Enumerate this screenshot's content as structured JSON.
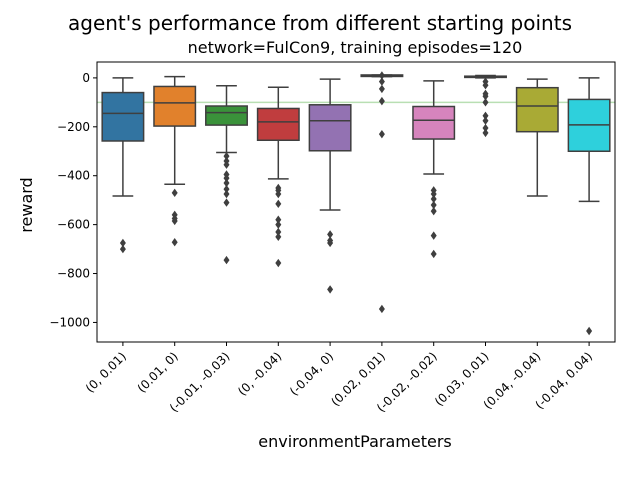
{
  "chart_data": {
    "type": "box",
    "title": "agent's performance from different starting points",
    "subtitle": "network=FulCon9, training episodes=120",
    "xlabel": "environmentParameters",
    "ylabel": "reward",
    "ylim": [
      -1080,
      65
    ],
    "yticks": [
      0,
      -200,
      -400,
      -600,
      -800,
      -1000
    ],
    "ytick_labels": [
      "0",
      "−200",
      "−400",
      "−600",
      "−800",
      "−1000"
    ],
    "reference_line": {
      "y": -100,
      "color": "#b9dfb3"
    },
    "grid": false,
    "legend": "none",
    "boxes": [
      {
        "category": "(0, 0.01)",
        "color": "#3274a1",
        "whisker_low": -483,
        "q1": -258,
        "median": -145,
        "q3": -60,
        "whisker_high": 0,
        "outliers": [
          -675,
          -700
        ]
      },
      {
        "category": "(0.01, 0)",
        "color": "#e1812c",
        "whisker_low": -435,
        "q1": -197,
        "median": -102,
        "q3": -35,
        "whisker_high": 5,
        "outliers": [
          -470,
          -560,
          -575,
          -585,
          -672
        ]
      },
      {
        "category": "(-0.01, -0.03)",
        "color": "#3a923a",
        "whisker_low": -305,
        "q1": -193,
        "median": -142,
        "q3": -115,
        "whisker_high": -32,
        "outliers": [
          -320,
          -340,
          -355,
          -395,
          -410,
          -430,
          -455,
          -475,
          -510,
          -745
        ]
      },
      {
        "category": "(0, -0.04)",
        "color": "#c03d3e",
        "whisker_low": -413,
        "q1": -255,
        "median": -180,
        "q3": -125,
        "whisker_high": -38,
        "outliers": [
          -450,
          -460,
          -475,
          -515,
          -580,
          -600,
          -630,
          -650,
          -757
        ]
      },
      {
        "category": "(-0.04, 0)",
        "color": "#9372b2",
        "whisker_low": -540,
        "q1": -298,
        "median": -175,
        "q3": -110,
        "whisker_high": -5,
        "outliers": [
          -640,
          -665,
          -675,
          -865
        ]
      },
      {
        "category": "(0.02, 0.01)",
        "color": "#845b53",
        "whisker_low": 5,
        "q1": 6,
        "median": 8,
        "q3": 12,
        "whisker_high": 12,
        "outliers": [
          10,
          -15,
          -45,
          -95,
          -230,
          -945
        ]
      },
      {
        "category": "(-0.02, -0.02)",
        "color": "#d684bd",
        "whisker_low": -393,
        "q1": -250,
        "median": -173,
        "q3": -117,
        "whisker_high": -12,
        "outliers": [
          -460,
          -475,
          -495,
          -520,
          -545,
          -645,
          -720
        ]
      },
      {
        "category": "(0.03, 0.01)",
        "color": "#7f7f7f",
        "whisker_low": 0,
        "q1": 2,
        "median": 4,
        "q3": 7,
        "whisker_high": 10,
        "outliers": [
          -15,
          -30,
          -65,
          -75,
          -100,
          -155,
          -175,
          -205,
          -225
        ]
      },
      {
        "category": "(0.04, -0.04)",
        "color": "#a9aa35",
        "whisker_low": -483,
        "q1": -220,
        "median": -115,
        "q3": -40,
        "whisker_high": -5,
        "outliers": []
      },
      {
        "category": "(-0.04, 0.04)",
        "color": "#2ed0dc",
        "whisker_low": -505,
        "q1": -300,
        "median": -192,
        "q3": -88,
        "whisker_high": 0,
        "outliers": [
          -1035
        ]
      }
    ]
  }
}
